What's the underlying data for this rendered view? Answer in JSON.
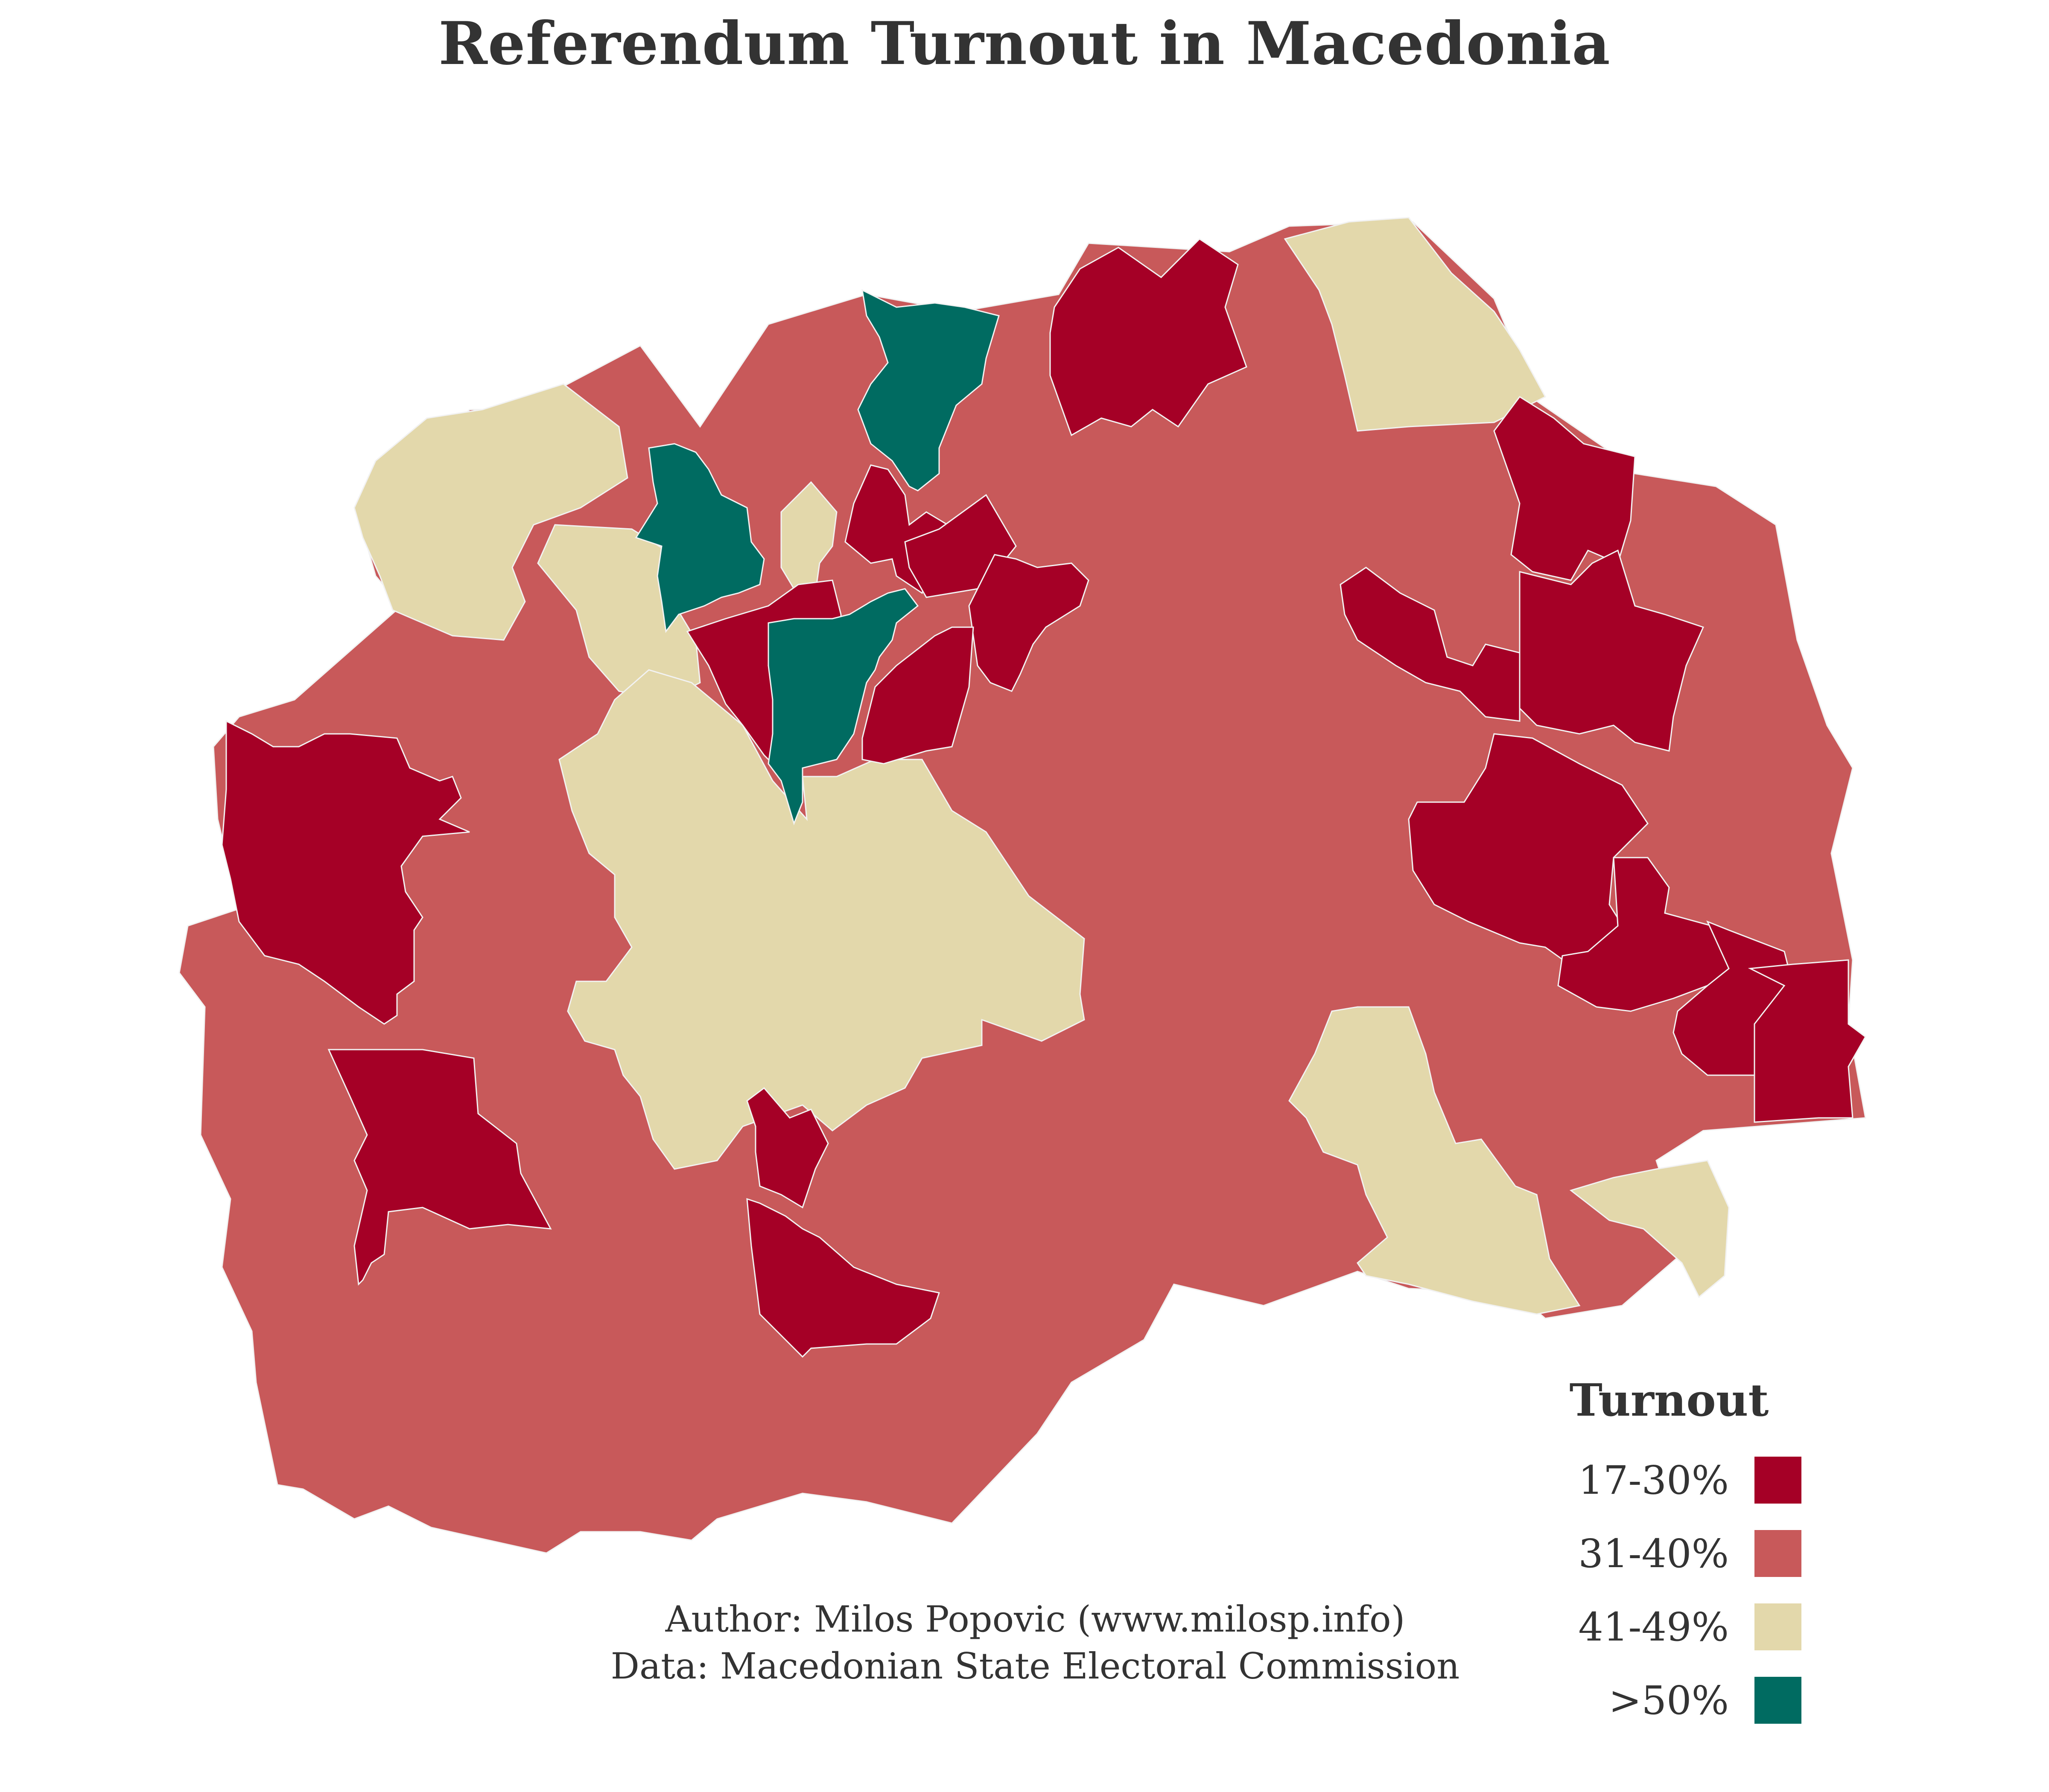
{
  "map": {
    "title": "Referendum Turnout in Macedonia",
    "legend": {
      "title": "Turnout",
      "items": [
        {
          "label": "17-30%",
          "color": "#a50026"
        },
        {
          "label": "31-40%",
          "color": "#c8595a"
        },
        {
          "label": "41-49%",
          "color": "#e3d8ab"
        },
        {
          "label": ">50%",
          "color": "#006b61"
        }
      ]
    },
    "caption": {
      "author": "Author: Milos Popovic (www.milosp.info)",
      "data_source": "Data: Macedonian State Electoral Commission"
    },
    "border_color": "#f2f2f2"
  }
}
